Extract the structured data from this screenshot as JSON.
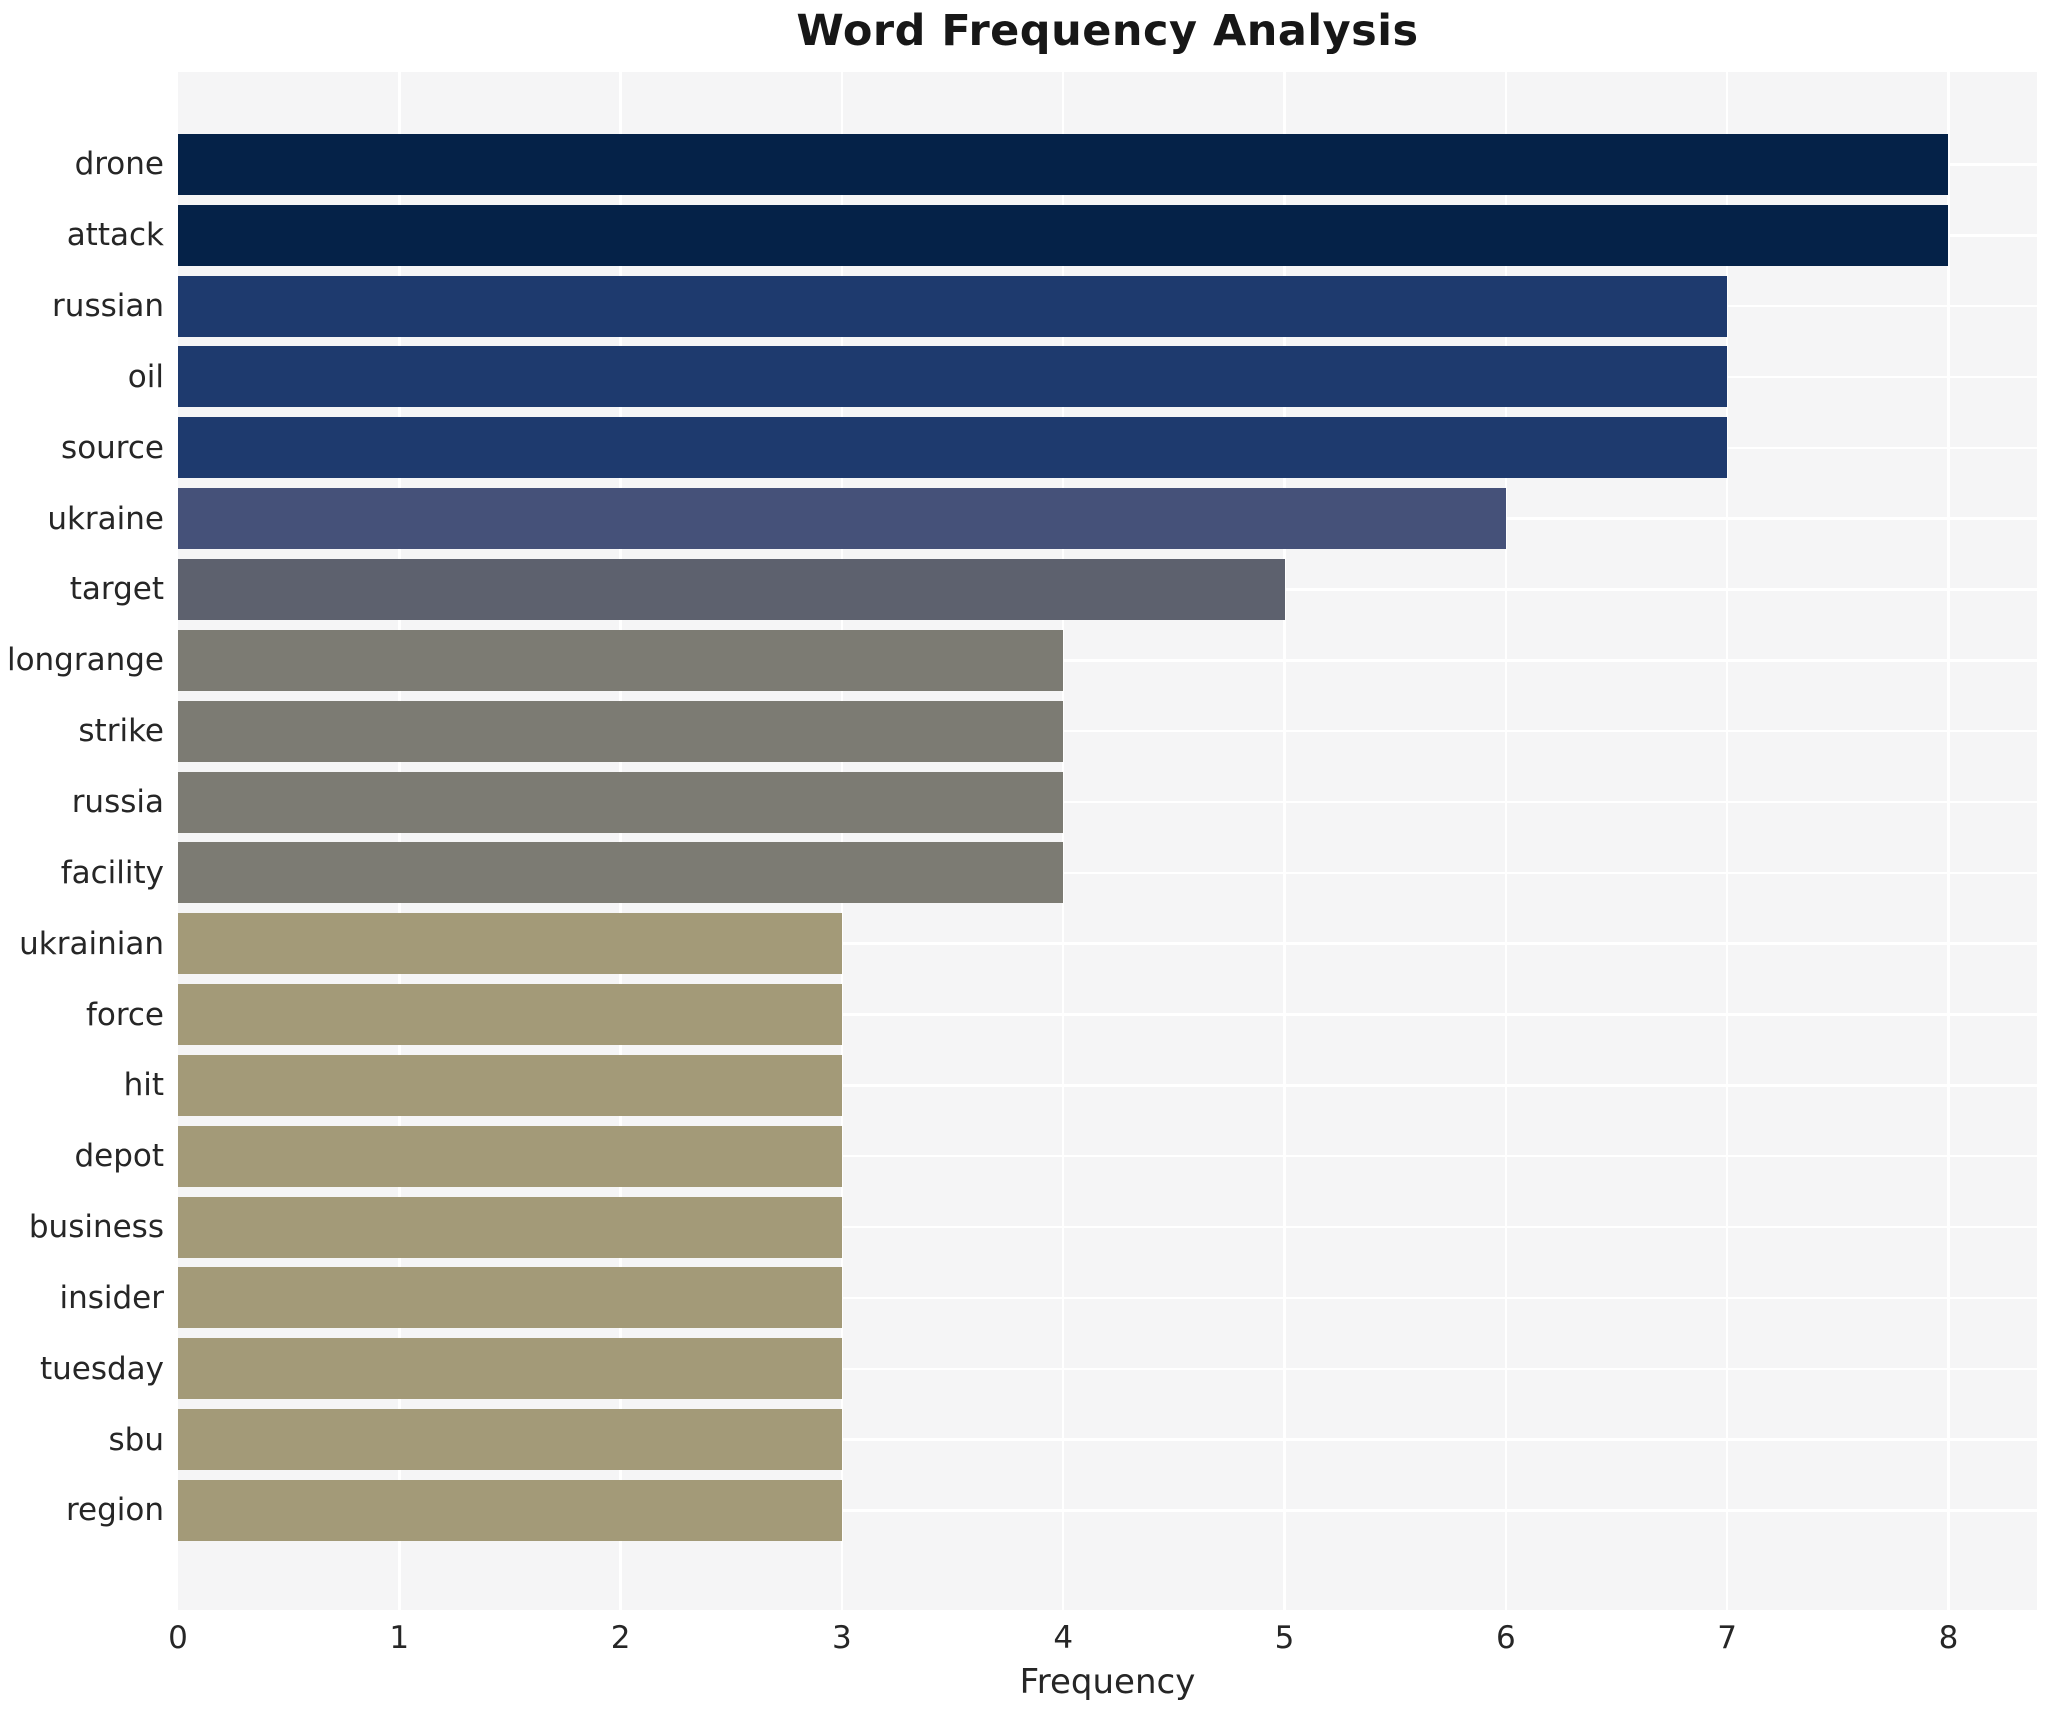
{
  "chart_data": {
    "type": "bar",
    "orientation": "horizontal",
    "title": "Word Frequency Analysis",
    "xlabel": "Frequency",
    "ylabel": "",
    "categories": [
      "drone",
      "attack",
      "russian",
      "oil",
      "source",
      "ukraine",
      "target",
      "longrange",
      "strike",
      "russia",
      "facility",
      "ukrainian",
      "force",
      "hit",
      "depot",
      "business",
      "insider",
      "tuesday",
      "sbu",
      "region"
    ],
    "values": [
      8,
      8,
      7,
      7,
      7,
      6,
      5,
      4,
      4,
      4,
      4,
      3,
      3,
      3,
      3,
      3,
      3,
      3,
      3,
      3
    ],
    "bar_colors": [
      "#052248",
      "#052248",
      "#1e3a6e",
      "#1e3a6e",
      "#1e3a6e",
      "#455179",
      "#5d616e",
      "#7c7b73",
      "#7c7b73",
      "#7c7b73",
      "#7c7b73",
      "#a39a78",
      "#a39a78",
      "#a39a78",
      "#a39a78",
      "#a39a78",
      "#a39a78",
      "#a39a78",
      "#a39a78",
      "#a39a78"
    ],
    "x_ticks": [
      0,
      1,
      2,
      3,
      4,
      5,
      6,
      7,
      8
    ],
    "xlim": [
      0,
      8.4
    ],
    "legend": "none",
    "grid": "on",
    "plot_bg_color": "#f5f5f6",
    "grid_color": "#ffffff",
    "text_color": "#262626",
    "title_color": "#171717"
  }
}
